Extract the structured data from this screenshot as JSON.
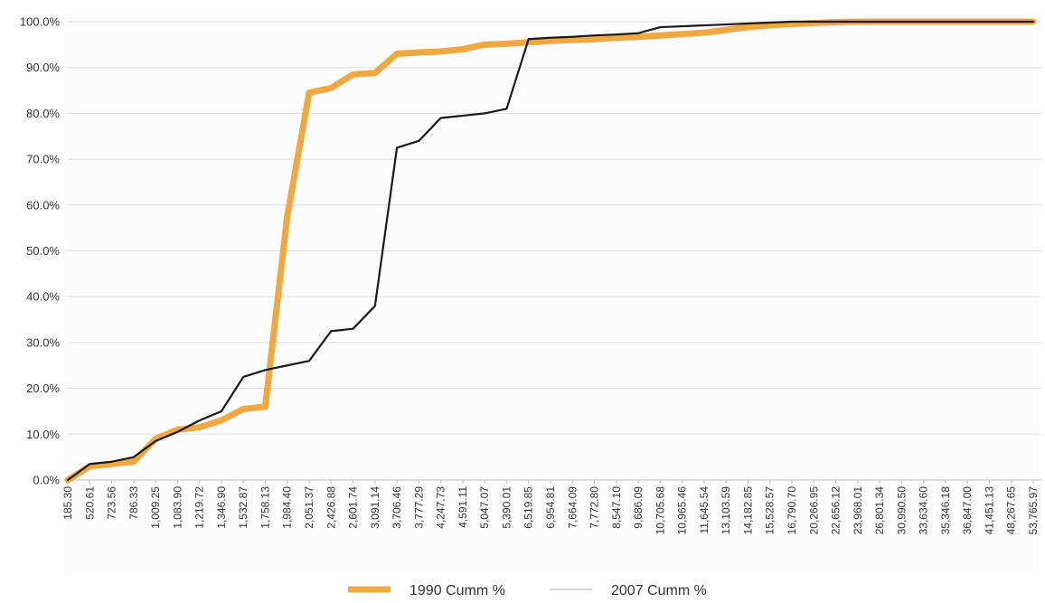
{
  "chart_data": {
    "type": "line",
    "title": "",
    "xlabel": "",
    "ylabel": "",
    "ylim": [
      0,
      100
    ],
    "grid": true,
    "legend_position": "bottom",
    "y_ticks": [
      "0.0%",
      "10.0%",
      "20.0%",
      "30.0%",
      "40.0%",
      "50.0%",
      "60.0%",
      "70.0%",
      "80.0%",
      "90.0%",
      "100.0%"
    ],
    "x_ticks": [
      "185.30",
      "520.61",
      "723.56",
      "786.33",
      "1,009.25",
      "1,083.90",
      "1,219.72",
      "1,346.90",
      "1,532.87",
      "1,758.13",
      "1,984.40",
      "2,051.37",
      "2,426.88",
      "2,601.74",
      "3,091.14",
      "3,706.46",
      "3,777.29",
      "4,247.73",
      "4,591.11",
      "5,047.07",
      "5,390.01",
      "6,519.85",
      "6,954.81",
      "7,664.09",
      "7,772.80",
      "8,547.10",
      "9,686.09",
      "10,705.68",
      "10,965.46",
      "11,645.54",
      "13,103.59",
      "14,182.85",
      "15,528.57",
      "16,790.70",
      "20,266.95",
      "22,656.12",
      "23,968.01",
      "26,801.34",
      "30,990.50",
      "33,634.60",
      "35,346.18",
      "36,847.00",
      "41,451.13",
      "48,267.65",
      "53,765.97"
    ],
    "series": [
      {
        "name": "1990 Cumm %",
        "color": "#F0A941",
        "values": [
          0.0,
          3.0,
          3.5,
          4.0,
          9.0,
          11.0,
          11.5,
          13.0,
          15.5,
          16.0,
          57.5,
          84.5,
          85.5,
          88.5,
          88.8,
          93.0,
          93.3,
          93.5,
          94.0,
          95.0,
          95.2,
          95.5,
          95.8,
          96.0,
          96.2,
          96.5,
          96.7,
          97.0,
          97.3,
          97.6,
          98.2,
          98.8,
          99.2,
          99.5,
          99.7,
          99.9,
          100.0,
          100.0,
          100.0,
          100.0,
          100.0,
          100.0,
          100.0,
          100.0,
          100.0
        ]
      },
      {
        "name": "2007 Cumm %",
        "color": "#1a1a1a",
        "values": [
          0.0,
          3.5,
          4.0,
          5.0,
          8.5,
          10.5,
          13.0,
          15.0,
          22.5,
          24.0,
          25.0,
          26.0,
          32.5,
          33.0,
          38.0,
          72.5,
          74.0,
          79.0,
          79.5,
          80.0,
          81.0,
          96.2,
          96.5,
          96.7,
          97.0,
          97.2,
          97.5,
          98.8,
          99.0,
          99.2,
          99.4,
          99.6,
          99.8,
          100.0,
          100.0,
          100.0,
          100.0,
          100.0,
          100.0,
          100.0,
          100.0,
          100.0,
          100.0,
          100.0,
          100.0
        ]
      }
    ]
  }
}
